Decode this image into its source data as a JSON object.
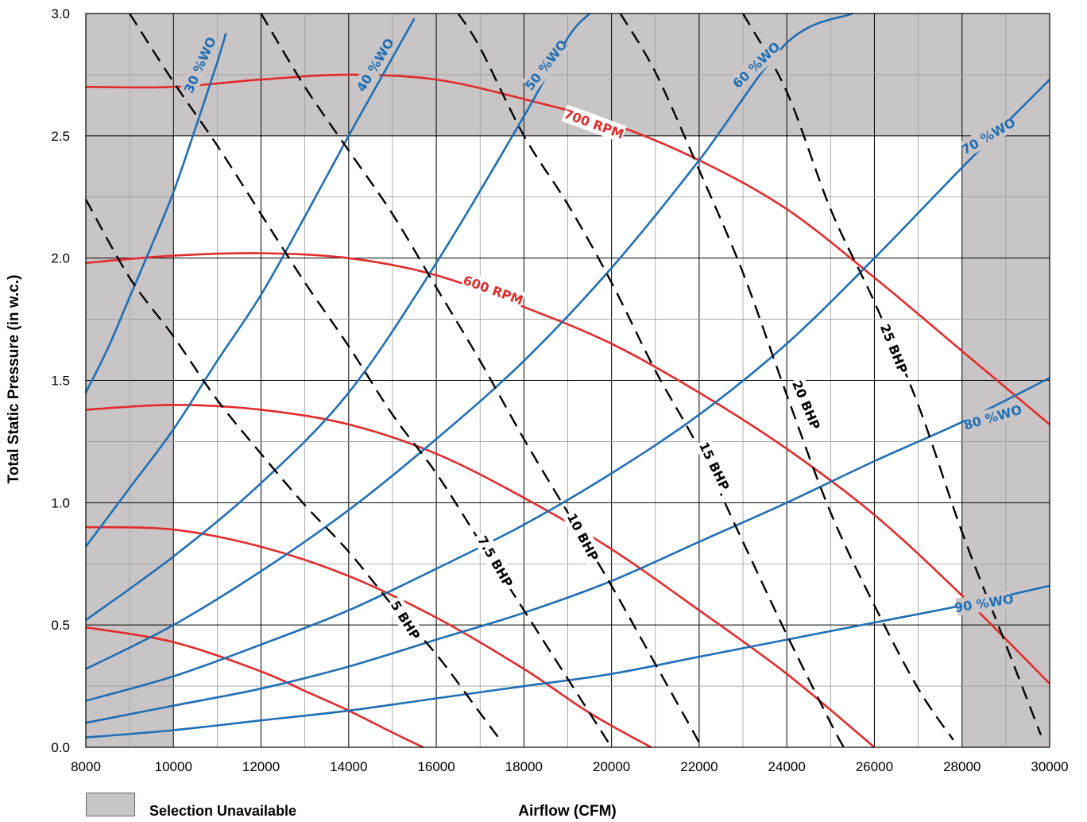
{
  "chart_data": {
    "type": "line",
    "xlabel": "Airflow (CFM)",
    "ylabel": "Total Static Pressure (in w.c.)",
    "xlim": [
      8000,
      30000
    ],
    "ylim": [
      0,
      3.0
    ],
    "x_ticks": [
      "8000",
      "10000",
      "12000",
      "14000",
      "16000",
      "18000",
      "20000",
      "22000",
      "24000",
      "26000",
      "28000",
      "30000"
    ],
    "y_ticks": [
      "0.0",
      "0.5",
      "1.0",
      "1.5",
      "2.0",
      "2.5",
      "3.0"
    ],
    "grid": true,
    "legend": {
      "label": "Selection Unavailable",
      "color": "#c9c5c6",
      "placement": "bottom-left"
    },
    "unavailable_regions": [
      {
        "x": [
          8000,
          10000
        ],
        "y": [
          0,
          3.0
        ]
      },
      {
        "x": [
          28000,
          30000
        ],
        "y": [
          0,
          3.0
        ]
      },
      {
        "x": [
          10000,
          28000
        ],
        "y": [
          2.5,
          3.0
        ]
      }
    ],
    "colors": {
      "rpm": "#e22b2b",
      "wo": "#1f6fb5",
      "bhp": "#000000",
      "unavailable": "#c9c5c6"
    },
    "series": [
      {
        "name": "700 RPM",
        "group": "rpm",
        "x": [
          8000,
          10000,
          12000,
          14000,
          16000,
          18000,
          20000,
          22000,
          24000,
          26000,
          28000,
          30000
        ],
        "y": [
          2.7,
          2.7,
          2.73,
          2.75,
          2.73,
          2.65,
          2.55,
          2.4,
          2.2,
          1.92,
          1.62,
          1.32
        ]
      },
      {
        "name": "600 RPM",
        "group": "rpm",
        "x": [
          8000,
          10000,
          12000,
          14000,
          16000,
          18000,
          20000,
          22000,
          24000,
          26000,
          28000,
          30000
        ],
        "y": [
          1.98,
          2.01,
          2.02,
          2.0,
          1.93,
          1.8,
          1.65,
          1.45,
          1.22,
          0.95,
          0.62,
          0.26
        ]
      },
      {
        "name": "",
        "group": "rpm",
        "x": [
          8000,
          10000,
          12000,
          14000,
          16000,
          18000,
          20000,
          22000,
          24000,
          26000
        ],
        "y": [
          1.38,
          1.4,
          1.38,
          1.32,
          1.2,
          1.02,
          0.81,
          0.56,
          0.3,
          0.0
        ]
      },
      {
        "name": "",
        "group": "rpm",
        "x": [
          8000,
          10000,
          12000,
          14000,
          16000,
          18000,
          19500,
          20900
        ],
        "y": [
          0.9,
          0.89,
          0.82,
          0.7,
          0.53,
          0.32,
          0.14,
          0.0
        ]
      },
      {
        "name": "",
        "group": "rpm",
        "x": [
          8000,
          10000,
          12000,
          13000,
          14000,
          15000,
          15700
        ],
        "y": [
          0.49,
          0.43,
          0.31,
          0.23,
          0.15,
          0.06,
          0.0
        ]
      },
      {
        "name": "30 %WO",
        "group": "wo",
        "x": [
          8000,
          8500,
          9000,
          9500,
          10000,
          10500,
          11000,
          11200
        ],
        "y": [
          1.45,
          1.63,
          1.84,
          2.05,
          2.27,
          2.53,
          2.8,
          2.92
        ]
      },
      {
        "name": "40 %WO",
        "group": "wo",
        "x": [
          8000,
          9000,
          10000,
          11000,
          12000,
          13000,
          14000,
          15000,
          15500
        ],
        "y": [
          0.82,
          1.06,
          1.3,
          1.58,
          1.85,
          2.17,
          2.5,
          2.82,
          2.98
        ]
      },
      {
        "name": "50 %WO",
        "group": "wo",
        "x": [
          8000,
          10000,
          12000,
          14000,
          16000,
          18000,
          19000,
          19500
        ],
        "y": [
          0.52,
          0.78,
          1.08,
          1.45,
          1.98,
          2.58,
          2.9,
          3.0
        ]
      },
      {
        "name": "60 %WO",
        "group": "wo",
        "x": [
          8000,
          10000,
          12000,
          14000,
          16000,
          18000,
          20000,
          22000,
          24000,
          25500
        ],
        "y": [
          0.32,
          0.5,
          0.72,
          0.97,
          1.26,
          1.58,
          1.96,
          2.4,
          2.88,
          3.0
        ]
      },
      {
        "name": "70 %WO",
        "group": "wo",
        "x": [
          8000,
          10000,
          12000,
          14000,
          16000,
          18000,
          20000,
          22000,
          24000,
          26000,
          28000,
          30000
        ],
        "y": [
          0.19,
          0.29,
          0.42,
          0.56,
          0.73,
          0.91,
          1.12,
          1.36,
          1.65,
          2.0,
          2.37,
          2.73
        ]
      },
      {
        "name": "80 %WO",
        "group": "wo",
        "x": [
          8000,
          10000,
          12000,
          14000,
          16000,
          18000,
          20000,
          22000,
          24000,
          26000,
          28000,
          30000
        ],
        "y": [
          0.1,
          0.17,
          0.24,
          0.33,
          0.44,
          0.55,
          0.68,
          0.84,
          1.0,
          1.17,
          1.33,
          1.51
        ]
      },
      {
        "name": "90 %WO",
        "group": "wo",
        "x": [
          8000,
          10000,
          12000,
          14000,
          16000,
          18000,
          20000,
          22000,
          24000,
          26000,
          28000,
          30000
        ],
        "y": [
          0.04,
          0.07,
          0.11,
          0.15,
          0.2,
          0.25,
          0.3,
          0.37,
          0.44,
          0.51,
          0.58,
          0.66
        ]
      },
      {
        "name": "5 BHP",
        "group": "bhp",
        "x": [
          8000,
          9000,
          10000,
          11000,
          12000,
          13000,
          14000,
          15000,
          16000,
          17000,
          17500
        ],
        "y": [
          2.24,
          1.92,
          1.68,
          1.42,
          1.2,
          0.99,
          0.8,
          0.58,
          0.38,
          0.14,
          0.02
        ]
      },
      {
        "name": "7.5 BHP",
        "group": "bhp",
        "x": [
          9000,
          10000,
          11000,
          12000,
          13000,
          14000,
          15000,
          16000,
          17000,
          18000,
          19000,
          20000
        ],
        "y": [
          3.0,
          2.72,
          2.46,
          2.18,
          1.9,
          1.64,
          1.36,
          1.12,
          0.84,
          0.56,
          0.28,
          0.0
        ]
      },
      {
        "name": "10 BHP",
        "group": "bhp",
        "x": [
          12000,
          13000,
          14000,
          15000,
          16000,
          17000,
          18000,
          19000,
          20000,
          21000,
          22000
        ],
        "y": [
          3.0,
          2.7,
          2.44,
          2.18,
          1.88,
          1.58,
          1.26,
          0.96,
          0.66,
          0.34,
          0.02
        ]
      },
      {
        "name": "15 BHP",
        "group": "bhp",
        "x": [
          16500,
          17000,
          18000,
          19000,
          20000,
          21000,
          22000,
          23000,
          24000,
          25000,
          25300
        ],
        "y": [
          3.0,
          2.86,
          2.5,
          2.22,
          1.9,
          1.54,
          1.22,
          0.84,
          0.46,
          0.1,
          0.0
        ]
      },
      {
        "name": "20 BHP",
        "group": "bhp",
        "x": [
          20200,
          21000,
          22000,
          23000,
          24000,
          25000,
          26000,
          27000,
          27800
        ],
        "y": [
          3.0,
          2.76,
          2.36,
          1.94,
          1.44,
          0.96,
          0.58,
          0.24,
          0.03
        ]
      },
      {
        "name": "25 BHP",
        "group": "bhp",
        "x": [
          23000,
          24000,
          25000,
          26000,
          27000,
          28000,
          29000,
          29800
        ],
        "y": [
          3.0,
          2.68,
          2.2,
          1.82,
          1.4,
          0.88,
          0.42,
          0.05
        ]
      }
    ],
    "labels": [
      {
        "text": "30 %WO",
        "group": "wo",
        "x": 10600,
        "y": 2.79,
        "angle": -66
      },
      {
        "text": "40 %WO",
        "group": "wo",
        "x": 14600,
        "y": 2.79,
        "angle": -59
      },
      {
        "text": "50 %WO",
        "group": "wo",
        "x": 18500,
        "y": 2.79,
        "angle": -52
      },
      {
        "text": "60 %WO",
        "group": "wo",
        "x": 23300,
        "y": 2.79,
        "angle": -44
      },
      {
        "text": "70 %WO",
        "group": "wo",
        "x": 28600,
        "y": 2.5,
        "angle": -30
      },
      {
        "text": "80 %WO",
        "group": "wo",
        "x": 28700,
        "y": 1.35,
        "angle": -16
      },
      {
        "text": "90 %WO",
        "group": "wo",
        "x": 28500,
        "y": 0.59,
        "angle": -9
      },
      {
        "text": "700 RPM",
        "group": "rpm",
        "x": 19600,
        "y": 2.55,
        "angle": 20
      },
      {
        "text": "600 RPM",
        "group": "rpm",
        "x": 17300,
        "y": 1.87,
        "angle": 20
      },
      {
        "text": "5 BHP",
        "group": "bhp",
        "x": 15300,
        "y": 0.52,
        "angle": 58
      },
      {
        "text": "7.5 BHP",
        "group": "bhp",
        "x": 17350,
        "y": 0.76,
        "angle": 60
      },
      {
        "text": "10 BHP",
        "group": "bhp",
        "x": 19350,
        "y": 0.86,
        "angle": 62
      },
      {
        "text": "15 BHP",
        "group": "bhp",
        "x": 22350,
        "y": 1.15,
        "angle": 64
      },
      {
        "text": "20 BHP",
        "group": "bhp",
        "x": 24450,
        "y": 1.4,
        "angle": 67
      },
      {
        "text": "25 BHP",
        "group": "bhp",
        "x": 26450,
        "y": 1.63,
        "angle": 68
      }
    ]
  }
}
